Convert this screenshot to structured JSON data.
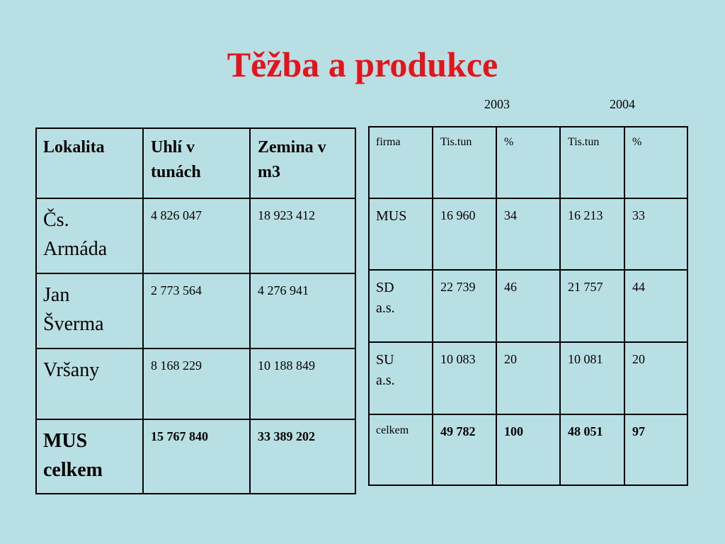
{
  "header": {
    "title": "Těžba a produkce",
    "years": [
      "2003",
      "2004"
    ]
  },
  "table1": {
    "header": [
      "Lokalita",
      "Uhlí v tunách",
      "Zemina v m3"
    ],
    "rows": [
      [
        "Čs. Armáda",
        "4 826 047",
        "18 923 412"
      ],
      [
        "Jan Šverma",
        "2 773 564",
        "4 276 941"
      ],
      [
        "Vršany",
        "8 168 229",
        "10 188 849"
      ],
      [
        "MUS celkem",
        "15 767 840",
        "33 389 202"
      ]
    ]
  },
  "table2": {
    "header": [
      "firma",
      "Tis.tun",
      "%",
      "Tis.tun",
      "%"
    ],
    "rows": [
      [
        "MUS",
        "16 960",
        "34",
        "16 213",
        "33"
      ],
      [
        "SD a.s.",
        "22 739",
        "46",
        "21 757",
        "44"
      ],
      [
        "SU a.s.",
        "10 083",
        "20",
        "10 081",
        "20"
      ],
      [
        "celkem",
        "49 782",
        "100",
        "48 051",
        "97"
      ]
    ]
  }
}
